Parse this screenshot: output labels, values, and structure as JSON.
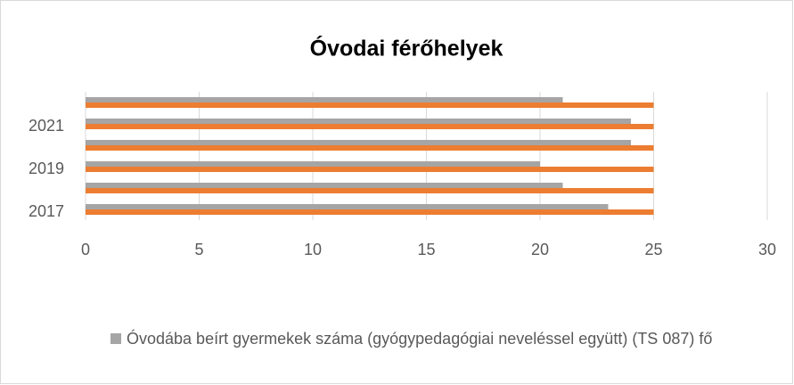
{
  "chart_data": {
    "type": "hbar",
    "title": "Óvodai férőhelyek",
    "categories": [
      "2017",
      null,
      "2019",
      null,
      "2021",
      null
    ],
    "series": [
      {
        "name": "Óvodába beírt gyermekek száma (gyógypedagógiai neveléssel együtt) (TS 087) fő",
        "color": "#a5a5a5",
        "values": [
          23,
          21,
          20,
          24,
          24,
          21
        ]
      },
      {
        "color": "#ed7d31",
        "values": [
          25,
          25,
          25,
          25,
          25,
          25
        ]
      }
    ],
    "xlim": [
      0,
      30
    ],
    "xticks": [
      0,
      5,
      10,
      15,
      20,
      25,
      30
    ],
    "grid": true,
    "legend": "bottom"
  }
}
